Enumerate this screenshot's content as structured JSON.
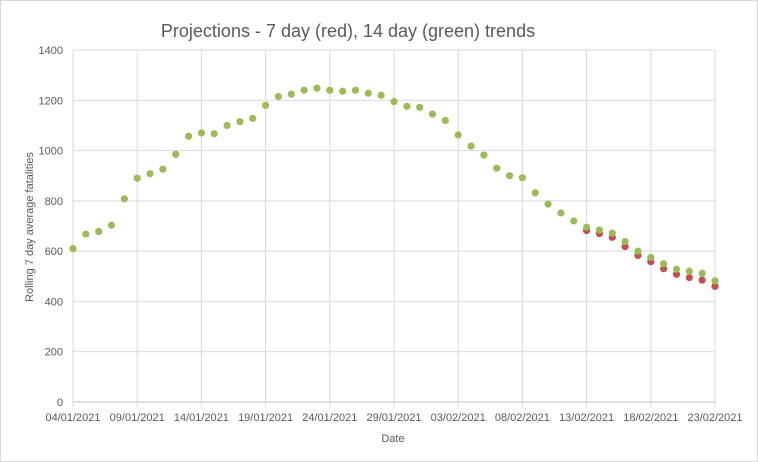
{
  "chart_data": {
    "type": "scatter",
    "title": "Projections - 7 day (red), 14 day (green) trends",
    "xlabel": "Date",
    "ylabel": "Rolling 7 day average fatalities",
    "xlim": [
      "04/01/2021",
      "23/02/2021"
    ],
    "ylim": [
      0,
      1400
    ],
    "y_ticks": [
      0,
      200,
      400,
      600,
      800,
      1000,
      1200,
      1400
    ],
    "x_ticks": [
      "04/01/2021",
      "09/01/2021",
      "14/01/2021",
      "19/01/2021",
      "24/01/2021",
      "29/01/2021",
      "03/02/2021",
      "08/02/2021",
      "13/02/2021",
      "18/02/2021",
      "23/02/2021"
    ],
    "grid": true,
    "legend": "none",
    "colors": {
      "red": "#c0504d",
      "green": "#9bbb59"
    },
    "series": [
      {
        "color": "red",
        "points": [
          [
            "13/02/2021",
            682
          ],
          [
            "14/02/2021",
            670
          ],
          [
            "15/02/2021",
            655
          ],
          [
            "16/02/2021",
            618
          ],
          [
            "17/02/2021",
            583
          ],
          [
            "18/02/2021",
            558
          ],
          [
            "19/02/2021",
            530
          ],
          [
            "20/02/2021",
            508
          ],
          [
            "21/02/2021",
            495
          ],
          [
            "22/02/2021",
            485
          ],
          [
            "23/02/2021",
            460
          ]
        ]
      },
      {
        "color": "green",
        "points": [
          [
            "04/01/2021",
            610
          ],
          [
            "05/01/2021",
            668
          ],
          [
            "06/01/2021",
            678
          ],
          [
            "07/01/2021",
            703
          ],
          [
            "08/01/2021",
            808
          ],
          [
            "09/01/2021",
            890
          ],
          [
            "10/01/2021",
            908
          ],
          [
            "11/01/2021",
            926
          ],
          [
            "12/01/2021",
            985
          ],
          [
            "13/01/2021",
            1057
          ],
          [
            "14/01/2021",
            1070
          ],
          [
            "15/01/2021",
            1067
          ],
          [
            "16/01/2021",
            1100
          ],
          [
            "17/01/2021",
            1115
          ],
          [
            "18/01/2021",
            1128
          ],
          [
            "19/01/2021",
            1180
          ],
          [
            "20/01/2021",
            1215
          ],
          [
            "21/01/2021",
            1224
          ],
          [
            "22/01/2021",
            1240
          ],
          [
            "23/01/2021",
            1248
          ],
          [
            "24/01/2021",
            1240
          ],
          [
            "25/01/2021",
            1236
          ],
          [
            "26/01/2021",
            1240
          ],
          [
            "27/01/2021",
            1228
          ],
          [
            "28/01/2021",
            1220
          ],
          [
            "29/01/2021",
            1195
          ],
          [
            "30/01/2021",
            1176
          ],
          [
            "31/01/2021",
            1172
          ],
          [
            "01/02/2021",
            1145
          ],
          [
            "02/02/2021",
            1120
          ],
          [
            "03/02/2021",
            1062
          ],
          [
            "04/02/2021",
            1018
          ],
          [
            "05/02/2021",
            982
          ],
          [
            "06/02/2021",
            930
          ],
          [
            "07/02/2021",
            900
          ],
          [
            "08/02/2021",
            892
          ],
          [
            "09/02/2021",
            832
          ],
          [
            "10/02/2021",
            787
          ],
          [
            "11/02/2021",
            752
          ],
          [
            "12/02/2021",
            720
          ],
          [
            "13/02/2021",
            695
          ],
          [
            "14/02/2021",
            684
          ],
          [
            "15/02/2021",
            672
          ],
          [
            "16/02/2021",
            638
          ],
          [
            "17/02/2021",
            600
          ],
          [
            "18/02/2021",
            575
          ],
          [
            "19/02/2021",
            550
          ],
          [
            "20/02/2021",
            528
          ],
          [
            "21/02/2021",
            520
          ],
          [
            "22/02/2021",
            512
          ],
          [
            "23/02/2021",
            482
          ]
        ]
      }
    ]
  }
}
